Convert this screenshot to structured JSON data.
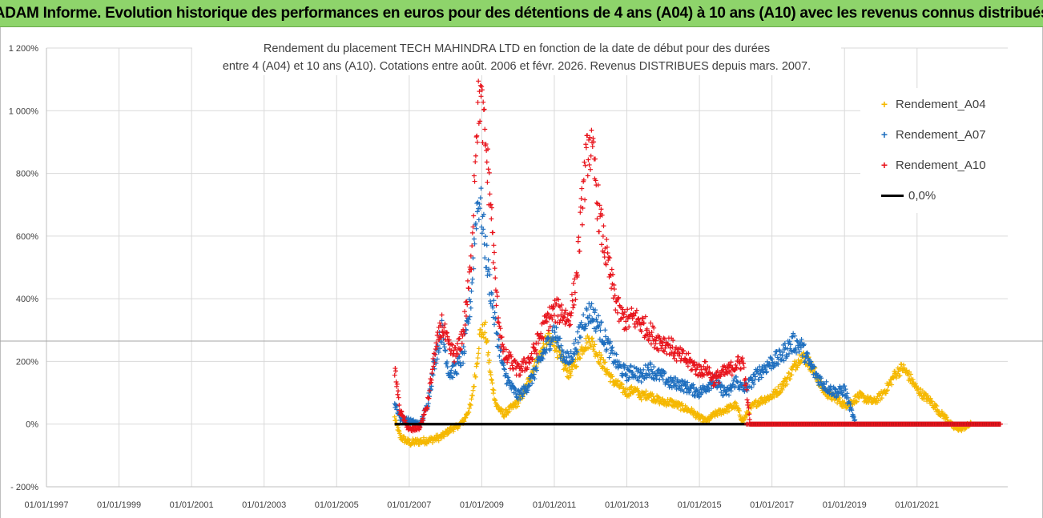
{
  "banner": {
    "text": "ADAM Informe. Evolution historique des performances en euros pour des détentions de 4 ans (A04) à 10 ans (A10) avec les revenus connus distribués"
  },
  "chart_data": {
    "type": "scatter",
    "title_line1": "Rendement du placement TECH MAHINDRA LTD en fonction de la date de début pour des durées",
    "title_line2": "entre 4 (A04) et 10 ans (A10). Cotations entre août. 2006 et févr. 2026. Revenus DISTRIBUES depuis mars. 2007.",
    "xlabel": "",
    "ylabel": "",
    "xlim": [
      1997.0,
      2023.5
    ],
    "ylim": [
      -200,
      1200
    ],
    "y_ticks": [
      -200,
      0,
      200,
      400,
      600,
      800,
      1000,
      1200
    ],
    "y_tick_labels": [
      "- 200%",
      "0%",
      "200%",
      "400%",
      "600%",
      "800%",
      "1 000%",
      "1 200%"
    ],
    "x_ticks": [
      1997,
      1999,
      2001,
      2003,
      2005,
      2007,
      2009,
      2011,
      2013,
      2015,
      2017,
      2019,
      2021
    ],
    "x_tick_labels": [
      "01/01/1997",
      "01/01/1999",
      "01/01/2001",
      "01/01/2003",
      "01/01/2005",
      "01/01/2007",
      "01/01/2009",
      "01/01/2011",
      "01/01/2013",
      "01/01/2015",
      "01/01/2017",
      "01/01/2019",
      "01/01/2021"
    ],
    "reference_line_y": 265,
    "legend_position": "right",
    "series": [
      {
        "name": "Rendement_A04",
        "color": "#f5b800",
        "marker": "+",
        "x": [
          2006.6,
          2006.75,
          2007.0,
          2007.3,
          2007.6,
          2007.9,
          2008.1,
          2008.3,
          2008.5,
          2008.7,
          2008.85,
          2008.95,
          2009.1,
          2009.25,
          2009.4,
          2009.6,
          2009.8,
          2010.0,
          2010.2,
          2010.4,
          2010.6,
          2010.8,
          2011.0,
          2011.2,
          2011.4,
          2011.6,
          2011.8,
          2012.0,
          2012.2,
          2012.4,
          2012.6,
          2012.8,
          2013.0,
          2013.2,
          2013.4,
          2013.6,
          2013.8,
          2014.0,
          2014.2,
          2014.4,
          2014.6,
          2014.8,
          2015.0,
          2015.2,
          2015.4,
          2015.6,
          2015.8,
          2016.0,
          2016.2,
          2016.4,
          2016.6,
          2016.8,
          2017.0,
          2017.2,
          2017.4,
          2017.6,
          2017.8,
          2018.0,
          2018.2,
          2018.4,
          2018.6,
          2018.8,
          2019.0,
          2019.2,
          2019.4,
          2019.6,
          2019.8,
          2020.0,
          2020.2,
          2020.4,
          2020.6,
          2020.8,
          2021.0,
          2021.2,
          2021.4,
          2021.6,
          2021.8,
          2022.0,
          2022.2,
          2022.5,
          2022.8,
          2023.0,
          2023.3
        ],
        "y": [
          20,
          -40,
          -60,
          -55,
          -50,
          -40,
          -20,
          -10,
          10,
          60,
          180,
          290,
          300,
          150,
          60,
          30,
          50,
          70,
          110,
          170,
          220,
          270,
          260,
          200,
          160,
          200,
          250,
          270,
          220,
          180,
          140,
          120,
          100,
          110,
          90,
          95,
          80,
          70,
          70,
          60,
          50,
          40,
          20,
          10,
          30,
          40,
          50,
          60,
          10,
          50,
          70,
          80,
          90,
          110,
          140,
          180,
          220,
          200,
          160,
          110,
          90,
          80,
          60,
          70,
          90,
          80,
          70,
          90,
          120,
          160,
          180,
          150,
          110,
          90,
          70,
          40,
          20,
          -10,
          -15,
          0,
          0,
          0,
          0
        ]
      },
      {
        "name": "Rendement_A07",
        "color": "#1f6fbf",
        "marker": "+",
        "x": [
          2006.6,
          2006.75,
          2007.0,
          2007.3,
          2007.5,
          2007.7,
          2007.9,
          2008.1,
          2008.3,
          2008.5,
          2008.7,
          2008.85,
          2008.95,
          2009.1,
          2009.25,
          2009.4,
          2009.6,
          2009.8,
          2010.0,
          2010.2,
          2010.4,
          2010.6,
          2010.8,
          2011.0,
          2011.2,
          2011.4,
          2011.6,
          2011.8,
          2012.0,
          2012.2,
          2012.4,
          2012.6,
          2012.8,
          2013.0,
          2013.2,
          2013.4,
          2013.6,
          2013.8,
          2014.0,
          2014.2,
          2014.4,
          2014.6,
          2014.8,
          2015.0,
          2015.2,
          2015.4,
          2015.6,
          2015.8,
          2016.0,
          2016.2,
          2016.4,
          2016.6,
          2016.8,
          2017.0,
          2017.2,
          2017.4,
          2017.6,
          2017.8,
          2018.0,
          2018.2,
          2018.4,
          2018.6,
          2018.8,
          2019.0,
          2019.3,
          2019.6,
          2020.0,
          2020.5,
          2021.0,
          2021.5,
          2022.0,
          2022.5,
          2023.0,
          2023.3
        ],
        "y": [
          70,
          20,
          10,
          0,
          60,
          200,
          300,
          160,
          180,
          220,
          400,
          680,
          720,
          560,
          420,
          300,
          170,
          120,
          90,
          110,
          150,
          200,
          250,
          300,
          230,
          200,
          250,
          330,
          360,
          320,
          270,
          220,
          180,
          160,
          170,
          150,
          180,
          160,
          150,
          130,
          130,
          120,
          110,
          100,
          120,
          140,
          110,
          100,
          140,
          110,
          130,
          160,
          180,
          200,
          210,
          240,
          260,
          250,
          200,
          160,
          130,
          110,
          100,
          110,
          0,
          0,
          0,
          0,
          0,
          0,
          0,
          0,
          0,
          0
        ]
      },
      {
        "name": "Rendement_A10",
        "color": "#e8141c",
        "marker": "+",
        "x": [
          2006.6,
          2006.75,
          2007.0,
          2007.3,
          2007.5,
          2007.7,
          2007.9,
          2008.1,
          2008.3,
          2008.5,
          2008.7,
          2008.85,
          2008.95,
          2009.1,
          2009.25,
          2009.4,
          2009.6,
          2009.8,
          2010.0,
          2010.2,
          2010.4,
          2010.6,
          2010.8,
          2011.0,
          2011.2,
          2011.4,
          2011.6,
          2011.8,
          2011.95,
          2012.1,
          2012.25,
          2012.4,
          2012.6,
          2012.8,
          2013.0,
          2013.2,
          2013.4,
          2013.6,
          2013.8,
          2014.0,
          2014.2,
          2014.4,
          2014.6,
          2014.8,
          2015.0,
          2015.2,
          2015.4,
          2015.6,
          2015.8,
          2016.0,
          2016.2,
          2016.4,
          2017.0,
          2018.0,
          2019.0,
          2020.0,
          2021.0,
          2022.0,
          2023.0,
          2023.3
        ],
        "y": [
          180,
          40,
          -20,
          -10,
          60,
          220,
          320,
          240,
          220,
          300,
          500,
          950,
          1050,
          900,
          700,
          400,
          220,
          200,
          170,
          190,
          220,
          280,
          330,
          360,
          360,
          330,
          450,
          750,
          900,
          820,
          650,
          560,
          440,
          350,
          330,
          340,
          320,
          300,
          270,
          260,
          250,
          220,
          210,
          190,
          170,
          180,
          140,
          160,
          170,
          190,
          200,
          0,
          0,
          0,
          0,
          0,
          0,
          0,
          0,
          0
        ]
      },
      {
        "name": "0,0%",
        "color": "#000000",
        "marker": "line",
        "x": [
          2006.6,
          2023.3
        ],
        "y": [
          0,
          0
        ]
      }
    ]
  }
}
